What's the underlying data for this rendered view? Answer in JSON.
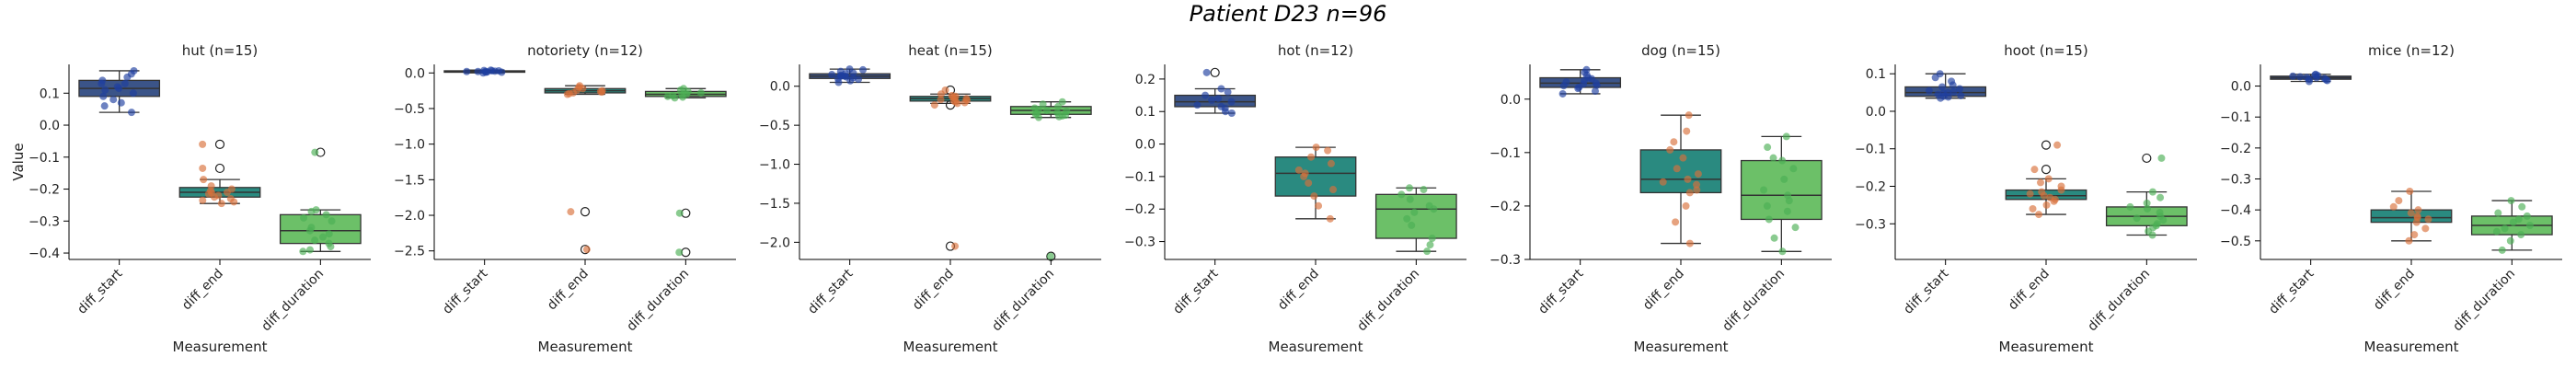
{
  "figure": {
    "suptitle": "Patient D23 n=96",
    "ylabel": "Value",
    "xlabel": "Measurement"
  },
  "chart_data": [
    {
      "type": "box",
      "title": "hut (n=15)",
      "categories": [
        "diff_start",
        "diff_end",
        "diff_duration"
      ],
      "ylim": [
        -0.42,
        0.19
      ],
      "yticks": [
        0.1,
        0.0,
        -0.1,
        -0.2,
        -0.3,
        -0.4
      ],
      "boxes": [
        {
          "q1": 0.09,
          "median": 0.115,
          "q3": 0.14,
          "whislo": 0.04,
          "whishi": 0.17,
          "fliers": [],
          "points": [
            0.04,
            0.06,
            0.08,
            0.09,
            0.1,
            0.11,
            0.115,
            0.12,
            0.13,
            0.14,
            0.15,
            0.16,
            0.17,
            0.07,
            0.13
          ]
        },
        {
          "q1": -0.225,
          "median": -0.21,
          "q3": -0.195,
          "whislo": -0.245,
          "whishi": -0.17,
          "fliers": [
            -0.06,
            -0.135
          ],
          "points": [
            -0.06,
            -0.135,
            -0.17,
            -0.19,
            -0.2,
            -0.205,
            -0.21,
            -0.212,
            -0.215,
            -0.22,
            -0.225,
            -0.23,
            -0.235,
            -0.24,
            -0.245
          ]
        },
        {
          "q1": -0.37,
          "median": -0.33,
          "q3": -0.28,
          "whislo": -0.395,
          "whishi": -0.265,
          "fliers": [
            -0.085
          ],
          "points": [
            -0.085,
            -0.265,
            -0.27,
            -0.28,
            -0.29,
            -0.3,
            -0.32,
            -0.33,
            -0.34,
            -0.35,
            -0.36,
            -0.37,
            -0.38,
            -0.39,
            -0.395
          ]
        }
      ]
    },
    {
      "type": "box",
      "title": "notoriety (n=12)",
      "categories": [
        "diff_start",
        "diff_end",
        "diff_duration"
      ],
      "ylim": [
        -2.62,
        0.12
      ],
      "yticks": [
        0.0,
        -0.5,
        -1.0,
        -1.5,
        -2.0,
        -2.5
      ],
      "boxes": [
        {
          "q1": 0.01,
          "median": 0.02,
          "q3": 0.03,
          "whislo": 0.0,
          "whishi": 0.04,
          "fliers": [],
          "points": [
            0.0,
            0.01,
            0.015,
            0.02,
            0.02,
            0.025,
            0.03,
            0.03,
            0.035,
            0.04,
            0.01,
            0.02
          ]
        },
        {
          "q1": -0.28,
          "median": -0.25,
          "q3": -0.22,
          "whislo": -0.3,
          "whishi": -0.18,
          "fliers": [
            -1.95,
            -2.48
          ],
          "points": [
            -1.95,
            -2.48,
            -0.18,
            -0.2,
            -0.22,
            -0.24,
            -0.25,
            -0.26,
            -0.27,
            -0.28,
            -0.29,
            -0.3
          ]
        },
        {
          "q1": -0.33,
          "median": -0.3,
          "q3": -0.26,
          "whislo": -0.35,
          "whishi": -0.22,
          "fliers": [
            -1.97,
            -2.52
          ],
          "points": [
            -1.97,
            -2.52,
            -0.22,
            -0.24,
            -0.26,
            -0.28,
            -0.3,
            -0.31,
            -0.32,
            -0.33,
            -0.34,
            -0.35
          ]
        }
      ]
    },
    {
      "type": "box",
      "title": "heat (n=15)",
      "categories": [
        "diff_start",
        "diff_end",
        "diff_duration"
      ],
      "ylim": [
        -2.22,
        0.28
      ],
      "yticks": [
        0.0,
        -0.5,
        -1.0,
        -1.5,
        -2.0
      ],
      "boxes": [
        {
          "q1": 0.1,
          "median": 0.13,
          "q3": 0.16,
          "whislo": 0.05,
          "whishi": 0.22,
          "fliers": [],
          "points": [
            0.05,
            0.07,
            0.09,
            0.1,
            0.11,
            0.12,
            0.13,
            0.13,
            0.14,
            0.15,
            0.16,
            0.17,
            0.19,
            0.21,
            0.22
          ]
        },
        {
          "q1": -0.19,
          "median": -0.16,
          "q3": -0.13,
          "whislo": -0.22,
          "whishi": -0.1,
          "fliers": [
            -0.05,
            -0.24,
            -2.05
          ],
          "points": [
            -0.05,
            -0.24,
            -2.05,
            -0.1,
            -0.12,
            -0.13,
            -0.14,
            -0.15,
            -0.16,
            -0.17,
            -0.18,
            -0.19,
            -0.2,
            -0.21,
            -0.22
          ]
        },
        {
          "q1": -0.36,
          "median": -0.31,
          "q3": -0.26,
          "whislo": -0.4,
          "whishi": -0.2,
          "fliers": [
            -2.18
          ],
          "points": [
            -2.18,
            -0.2,
            -0.23,
            -0.26,
            -0.28,
            -0.3,
            -0.31,
            -0.32,
            -0.34,
            -0.35,
            -0.36,
            -0.37,
            -0.38,
            -0.39,
            -0.4
          ]
        }
      ]
    },
    {
      "type": "box",
      "title": "hot (n=12)",
      "categories": [
        "diff_start",
        "diff_end",
        "diff_duration"
      ],
      "ylim": [
        -0.355,
        0.245
      ],
      "yticks": [
        0.2,
        0.1,
        0.0,
        -0.1,
        -0.2,
        -0.3
      ],
      "boxes": [
        {
          "q1": 0.115,
          "median": 0.13,
          "q3": 0.15,
          "whislo": 0.095,
          "whishi": 0.17,
          "fliers": [
            0.22
          ],
          "points": [
            0.22,
            0.095,
            0.1,
            0.11,
            0.115,
            0.12,
            0.13,
            0.135,
            0.14,
            0.15,
            0.16,
            0.17
          ]
        },
        {
          "q1": -0.16,
          "median": -0.09,
          "q3": -0.04,
          "whislo": -0.23,
          "whishi": -0.01,
          "fliers": [],
          "points": [
            -0.01,
            -0.02,
            -0.04,
            -0.06,
            -0.08,
            -0.09,
            -0.1,
            -0.12,
            -0.14,
            -0.16,
            -0.19,
            -0.23
          ]
        },
        {
          "q1": -0.29,
          "median": -0.2,
          "q3": -0.155,
          "whislo": -0.33,
          "whishi": -0.135,
          "fliers": [],
          "points": [
            -0.135,
            -0.14,
            -0.155,
            -0.17,
            -0.19,
            -0.2,
            -0.21,
            -0.23,
            -0.25,
            -0.29,
            -0.31,
            -0.33
          ]
        }
      ]
    },
    {
      "type": "box",
      "title": "dog (n=15)",
      "categories": [
        "diff_start",
        "diff_end",
        "diff_duration"
      ],
      "ylim": [
        -0.3,
        0.065
      ],
      "yticks": [
        0.0,
        -0.1,
        -0.2,
        -0.3
      ],
      "boxes": [
        {
          "q1": 0.022,
          "median": 0.03,
          "q3": 0.04,
          "whislo": 0.01,
          "whishi": 0.055,
          "fliers": [],
          "points": [
            0.01,
            0.015,
            0.02,
            0.022,
            0.025,
            0.028,
            0.03,
            0.032,
            0.035,
            0.038,
            0.04,
            0.045,
            0.05,
            0.055,
            0.026
          ]
        },
        {
          "q1": -0.175,
          "median": -0.15,
          "q3": -0.095,
          "whislo": -0.27,
          "whishi": -0.03,
          "fliers": [],
          "points": [
            -0.03,
            -0.06,
            -0.08,
            -0.095,
            -0.11,
            -0.13,
            -0.14,
            -0.15,
            -0.155,
            -0.16,
            -0.17,
            -0.175,
            -0.2,
            -0.23,
            -0.27
          ]
        },
        {
          "q1": -0.225,
          "median": -0.18,
          "q3": -0.115,
          "whislo": -0.285,
          "whishi": -0.07,
          "fliers": [],
          "points": [
            -0.07,
            -0.09,
            -0.11,
            -0.115,
            -0.13,
            -0.15,
            -0.17,
            -0.18,
            -0.19,
            -0.2,
            -0.21,
            -0.225,
            -0.24,
            -0.26,
            -0.285
          ]
        }
      ]
    },
    {
      "type": "box",
      "title": "hoot (n=15)",
      "categories": [
        "diff_start",
        "diff_end",
        "diff_duration"
      ],
      "ylim": [
        -0.395,
        0.125
      ],
      "yticks": [
        0.1,
        0.0,
        -0.1,
        -0.2,
        -0.3
      ],
      "boxes": [
        {
          "q1": 0.04,
          "median": 0.05,
          "q3": 0.065,
          "whislo": 0.035,
          "whishi": 0.1,
          "fliers": [],
          "points": [
            0.035,
            0.038,
            0.04,
            0.042,
            0.045,
            0.048,
            0.05,
            0.052,
            0.055,
            0.06,
            0.065,
            0.07,
            0.08,
            0.09,
            0.1
          ]
        },
        {
          "q1": -0.235,
          "median": -0.225,
          "q3": -0.21,
          "whislo": -0.275,
          "whishi": -0.18,
          "fliers": [
            -0.09,
            -0.155
          ],
          "points": [
            -0.09,
            -0.155,
            -0.18,
            -0.19,
            -0.2,
            -0.21,
            -0.215,
            -0.22,
            -0.225,
            -0.23,
            -0.235,
            -0.24,
            -0.25,
            -0.26,
            -0.275
          ]
        },
        {
          "q1": -0.305,
          "median": -0.28,
          "q3": -0.255,
          "whislo": -0.33,
          "whishi": -0.215,
          "fliers": [
            -0.125
          ],
          "points": [
            -0.125,
            -0.215,
            -0.23,
            -0.245,
            -0.255,
            -0.26,
            -0.27,
            -0.28,
            -0.285,
            -0.29,
            -0.3,
            -0.305,
            -0.31,
            -0.32,
            -0.33
          ]
        }
      ]
    },
    {
      "type": "box",
      "title": "mice (n=12)",
      "categories": [
        "diff_start",
        "diff_end",
        "diff_duration"
      ],
      "ylim": [
        -0.56,
        0.07
      ],
      "yticks": [
        0.0,
        -0.1,
        -0.2,
        -0.3,
        -0.4,
        -0.5
      ],
      "boxes": [
        {
          "q1": 0.022,
          "median": 0.027,
          "q3": 0.032,
          "whislo": 0.015,
          "whishi": 0.038,
          "fliers": [],
          "points": [
            0.015,
            0.018,
            0.02,
            0.022,
            0.025,
            0.027,
            0.028,
            0.03,
            0.032,
            0.034,
            0.036,
            0.038
          ]
        },
        {
          "q1": -0.44,
          "median": -0.425,
          "q3": -0.4,
          "whislo": -0.5,
          "whishi": -0.34,
          "fliers": [],
          "points": [
            -0.34,
            -0.37,
            -0.39,
            -0.4,
            -0.41,
            -0.42,
            -0.425,
            -0.43,
            -0.44,
            -0.46,
            -0.48,
            -0.5
          ]
        },
        {
          "q1": -0.48,
          "median": -0.45,
          "q3": -0.42,
          "whislo": -0.53,
          "whishi": -0.37,
          "fliers": [],
          "points": [
            -0.37,
            -0.39,
            -0.41,
            -0.42,
            -0.43,
            -0.44,
            -0.45,
            -0.46,
            -0.47,
            -0.48,
            -0.5,
            -0.53
          ]
        }
      ]
    }
  ],
  "colors": {
    "box_fills": [
      "#3b5488",
      "#2a8a80",
      "#6cc068"
    ],
    "point_colors": [
      "#1f3f9f",
      "#d9703a",
      "#4caf55"
    ],
    "line": "#333333"
  }
}
